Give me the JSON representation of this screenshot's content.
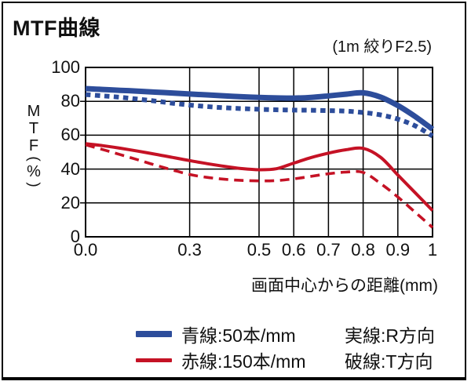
{
  "header": {
    "title": "MTF曲線",
    "subtitle": "(1m 絞りF2.5)"
  },
  "axes": {
    "y_label_chars": [
      "M",
      "T",
      "F"
    ],
    "y_label_unit": "%",
    "x_title": "画面中心からの距離(mm)"
  },
  "legend": {
    "rows": [
      {
        "swatch": "blue-line",
        "color": "#2d4d9b",
        "thickness": 8,
        "label": "青線:50本/mm",
        "right": "実線:R方向"
      },
      {
        "swatch": "red-line",
        "color": "#c51225",
        "thickness": 5,
        "label": "赤線:150本/mm",
        "right": "破線:T方向"
      }
    ]
  },
  "chart_data": {
    "type": "line",
    "title": "MTF曲線",
    "subtitle": "(1m 絞りF2.5)",
    "xlabel": "画面中心からの距離(mm)",
    "ylabel": "MTF(%)",
    "xlim": [
      0,
      1
    ],
    "ylim": [
      0,
      100
    ],
    "grid": true,
    "x_gridlines": [
      0.3,
      0.5,
      0.6,
      0.7,
      0.8,
      0.9
    ],
    "y_gridlines": [
      20,
      40,
      60,
      80
    ],
    "x_ticks": [
      {
        "value": 0,
        "label": "0.0"
      },
      {
        "value": 0.3,
        "label": "0.3"
      },
      {
        "value": 0.5,
        "label": "0.5"
      },
      {
        "value": 0.6,
        "label": "0.6"
      },
      {
        "value": 0.7,
        "label": "0.7"
      },
      {
        "value": 0.8,
        "label": "0.8"
      },
      {
        "value": 0.9,
        "label": "0.9"
      },
      {
        "value": 1,
        "label": "1"
      }
    ],
    "y_ticks": [
      {
        "value": 100,
        "label": "100"
      },
      {
        "value": 80,
        "label": "80"
      },
      {
        "value": 60,
        "label": "60"
      },
      {
        "value": 40,
        "label": "40"
      },
      {
        "value": 20,
        "label": "20"
      },
      {
        "value": 0,
        "label": "0"
      }
    ],
    "x": [
      0,
      0.05,
      0.1,
      0.15,
      0.2,
      0.25,
      0.3,
      0.35,
      0.4,
      0.45,
      0.5,
      0.55,
      0.6,
      0.65,
      0.7,
      0.75,
      0.8,
      0.85,
      0.9,
      0.95,
      1
    ],
    "series": [
      {
        "name": "青線:50本/mm 破線:T方向",
        "color": "#2d4d9b",
        "style": "dotted",
        "width": 6,
        "values": [
          84,
          83.2,
          82.4,
          81.3,
          80.2,
          78.9,
          77.8,
          76.9,
          76.2,
          75.7,
          75.3,
          75,
          74.8,
          74.7,
          74.5,
          74.2,
          73.4,
          72,
          69.5,
          65.5,
          59.5
        ]
      },
      {
        "name": "青線:50本/mm 実線:R方向",
        "color": "#2d4d9b",
        "style": "solid",
        "width": 7,
        "values": [
          87.5,
          87,
          86.5,
          86,
          85.4,
          84.9,
          84.3,
          83.8,
          83.2,
          82.7,
          82.3,
          82,
          81.9,
          82.3,
          83.2,
          84.2,
          85,
          82.5,
          77.5,
          71,
          63.5
        ]
      },
      {
        "name": "赤線:150本/mm 破線:T方向",
        "color": "#c51225",
        "style": "dashed",
        "width": 3.6,
        "values": [
          54.3,
          51.5,
          48.5,
          45.5,
          42.4,
          39.5,
          36.8,
          35.1,
          34,
          33.3,
          33,
          33.2,
          34.2,
          35.7,
          37.2,
          38.2,
          38,
          31.5,
          23.5,
          14.5,
          5.5
        ]
      },
      {
        "name": "赤線:150本/mm 実線:R方向",
        "color": "#c51225",
        "style": "solid",
        "width": 4,
        "values": [
          55,
          53.8,
          52.3,
          50.6,
          48.8,
          46.9,
          45,
          43.2,
          41.6,
          40.3,
          39.6,
          40.2,
          43.5,
          46.8,
          49.4,
          51.4,
          52.2,
          47,
          36.5,
          26,
          15.5
        ]
      }
    ],
    "legend_position": "bottom"
  }
}
